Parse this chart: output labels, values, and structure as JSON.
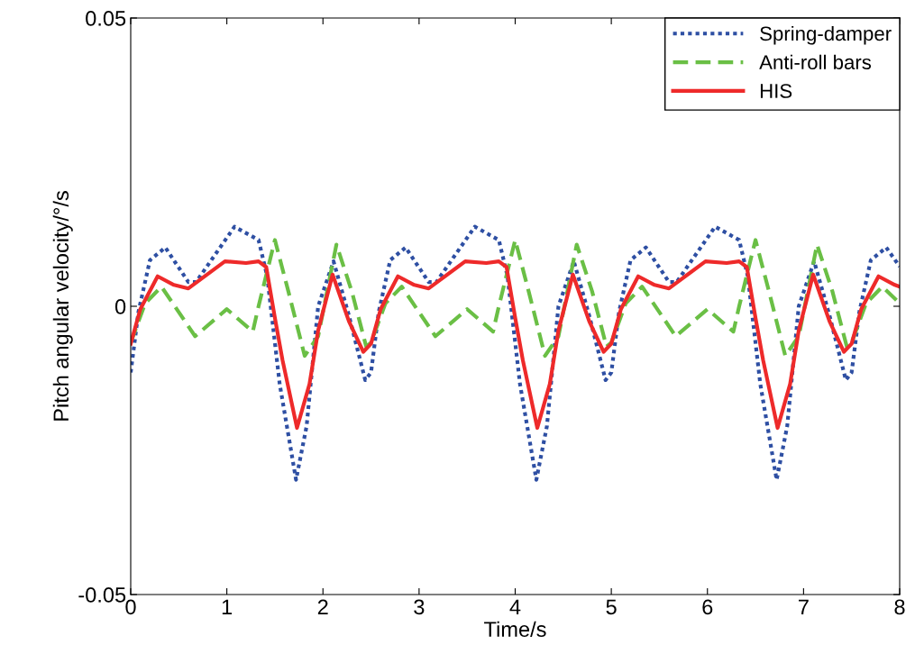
{
  "chart_data": {
    "type": "line",
    "xlabel": "Time/s",
    "ylabel": "Pitch angular velocity/°/s",
    "xlim": [
      0,
      8
    ],
    "xticks": [
      0,
      1,
      2,
      3,
      4,
      5,
      6,
      7,
      8
    ],
    "ylim": [
      -0.05,
      0.05
    ],
    "yticks": [
      {
        "value": -0.05,
        "label": "-0.05"
      },
      0,
      {
        "value": 0.05,
        "label": "0.05"
      }
    ],
    "grid": false,
    "legend": "top right",
    "series": [
      {
        "name": "Spring-damper",
        "color": "#2e4fa3",
        "line_style": "dotted",
        "x": [
          0,
          0.08,
          0.2,
          0.36,
          0.6,
          0.68,
          1.08,
          1.33,
          1.42,
          1.55,
          1.72,
          1.83,
          1.95,
          2.11,
          2.27,
          2.44,
          2.5,
          2.58,
          2.7,
          2.86,
          3.1,
          3.18,
          3.58,
          3.83,
          3.92,
          4.05,
          4.22,
          4.33,
          4.45,
          4.61,
          4.77,
          4.94,
          5,
          5.08,
          5.2,
          5.36,
          5.6,
          5.68,
          6.08,
          6.33,
          6.42,
          6.55,
          6.72,
          6.83,
          6.95,
          7.11,
          7.27,
          7.44,
          7.5,
          7.58,
          7.7,
          7.86,
          8
        ],
        "values": [
          -0.0115,
          -0.001,
          0.008,
          0.0102,
          0.0042,
          0.0042,
          0.0138,
          0.0115,
          0.0052,
          -0.0135,
          -0.0301,
          -0.0208,
          0,
          0.0078,
          -0.0016,
          -0.0128,
          -0.0115,
          -0.001,
          0.008,
          0.0102,
          0.0042,
          0.0042,
          0.0138,
          0.0115,
          0.0052,
          -0.0135,
          -0.0301,
          -0.0208,
          0,
          0.0078,
          -0.0016,
          -0.0128,
          -0.0115,
          -0.001,
          0.008,
          0.0102,
          0.0042,
          0.0042,
          0.0138,
          0.0115,
          0.0052,
          -0.0135,
          -0.0301,
          -0.0208,
          0,
          0.0078,
          -0.0016,
          -0.0128,
          -0.0115,
          -0.001,
          0.008,
          0.0102,
          0.0069
        ]
      },
      {
        "name": "Anti-roll bars",
        "color": "#6abf45",
        "line_style": "dashed",
        "x": [
          0,
          0.15,
          0.32,
          0.67,
          1.0,
          1.27,
          1.33,
          1.5,
          1.64,
          1.81,
          1.95,
          2.14,
          2.3,
          2.45,
          2.5,
          2.65,
          2.82,
          3.17,
          3.5,
          3.77,
          3.83,
          4.0,
          4.14,
          4.31,
          4.45,
          4.64,
          4.8,
          4.95,
          5,
          5.15,
          5.32,
          5.67,
          6.0,
          6.27,
          6.33,
          6.5,
          6.64,
          6.81,
          6.95,
          7.14,
          7.3,
          7.45,
          7.5,
          7.65,
          7.82,
          8
        ],
        "values": [
          -0.0063,
          0.0005,
          0.0034,
          -0.0052,
          -0.0005,
          -0.0044,
          0,
          0.0115,
          0.0026,
          -0.0086,
          -0.0052,
          0.0107,
          0.0026,
          -0.007,
          -0.0063,
          0.0005,
          0.0034,
          -0.0052,
          -0.0005,
          -0.0044,
          0,
          0.0115,
          0.0026,
          -0.0086,
          -0.0052,
          0.0107,
          0.0026,
          -0.007,
          -0.0063,
          0.0005,
          0.0034,
          -0.0052,
          -0.0005,
          -0.0044,
          0,
          0.0115,
          0.0026,
          -0.0086,
          -0.0052,
          0.0107,
          0.0026,
          -0.007,
          -0.0063,
          0.0005,
          0.0034,
          0.0005
        ]
      },
      {
        "name": "HIS",
        "color": "#ee2a2a",
        "line_style": "solid",
        "x": [
          0,
          0.1,
          0.28,
          0.45,
          0.6,
          0.98,
          1.2,
          1.33,
          1.41,
          1.5,
          1.58,
          1.73,
          1.86,
          1.95,
          2.1,
          2.27,
          2.42,
          2.5,
          2.6,
          2.78,
          2.95,
          3.1,
          3.48,
          3.7,
          3.83,
          3.91,
          4.0,
          4.08,
          4.23,
          4.36,
          4.45,
          4.6,
          4.77,
          4.92,
          5,
          5.1,
          5.28,
          5.45,
          5.6,
          5.98,
          6.2,
          6.33,
          6.41,
          6.5,
          6.58,
          6.73,
          6.86,
          6.95,
          7.1,
          7.27,
          7.42,
          7.5,
          7.6,
          7.78,
          7.95,
          8
        ],
        "values": [
          -0.0065,
          -0.0005,
          0.0052,
          0.0037,
          0.0031,
          0.0078,
          0.0075,
          0.0078,
          0.0068,
          -0.002,
          -0.0094,
          -0.0211,
          -0.0135,
          -0.0042,
          0.0055,
          -0.0026,
          -0.0079,
          -0.0065,
          -0.0005,
          0.0052,
          0.0037,
          0.0031,
          0.0078,
          0.0075,
          0.0078,
          0.0068,
          -0.002,
          -0.0094,
          -0.0211,
          -0.0135,
          -0.0042,
          0.0055,
          -0.0026,
          -0.0079,
          -0.0065,
          -0.0005,
          0.0052,
          0.0037,
          0.0031,
          0.0078,
          0.0075,
          0.0078,
          0.0068,
          -0.002,
          -0.0094,
          -0.0211,
          -0.0135,
          -0.0042,
          0.0055,
          -0.0026,
          -0.0079,
          -0.0065,
          -0.0005,
          0.0052,
          0.0037,
          0.0034
        ]
      }
    ]
  }
}
